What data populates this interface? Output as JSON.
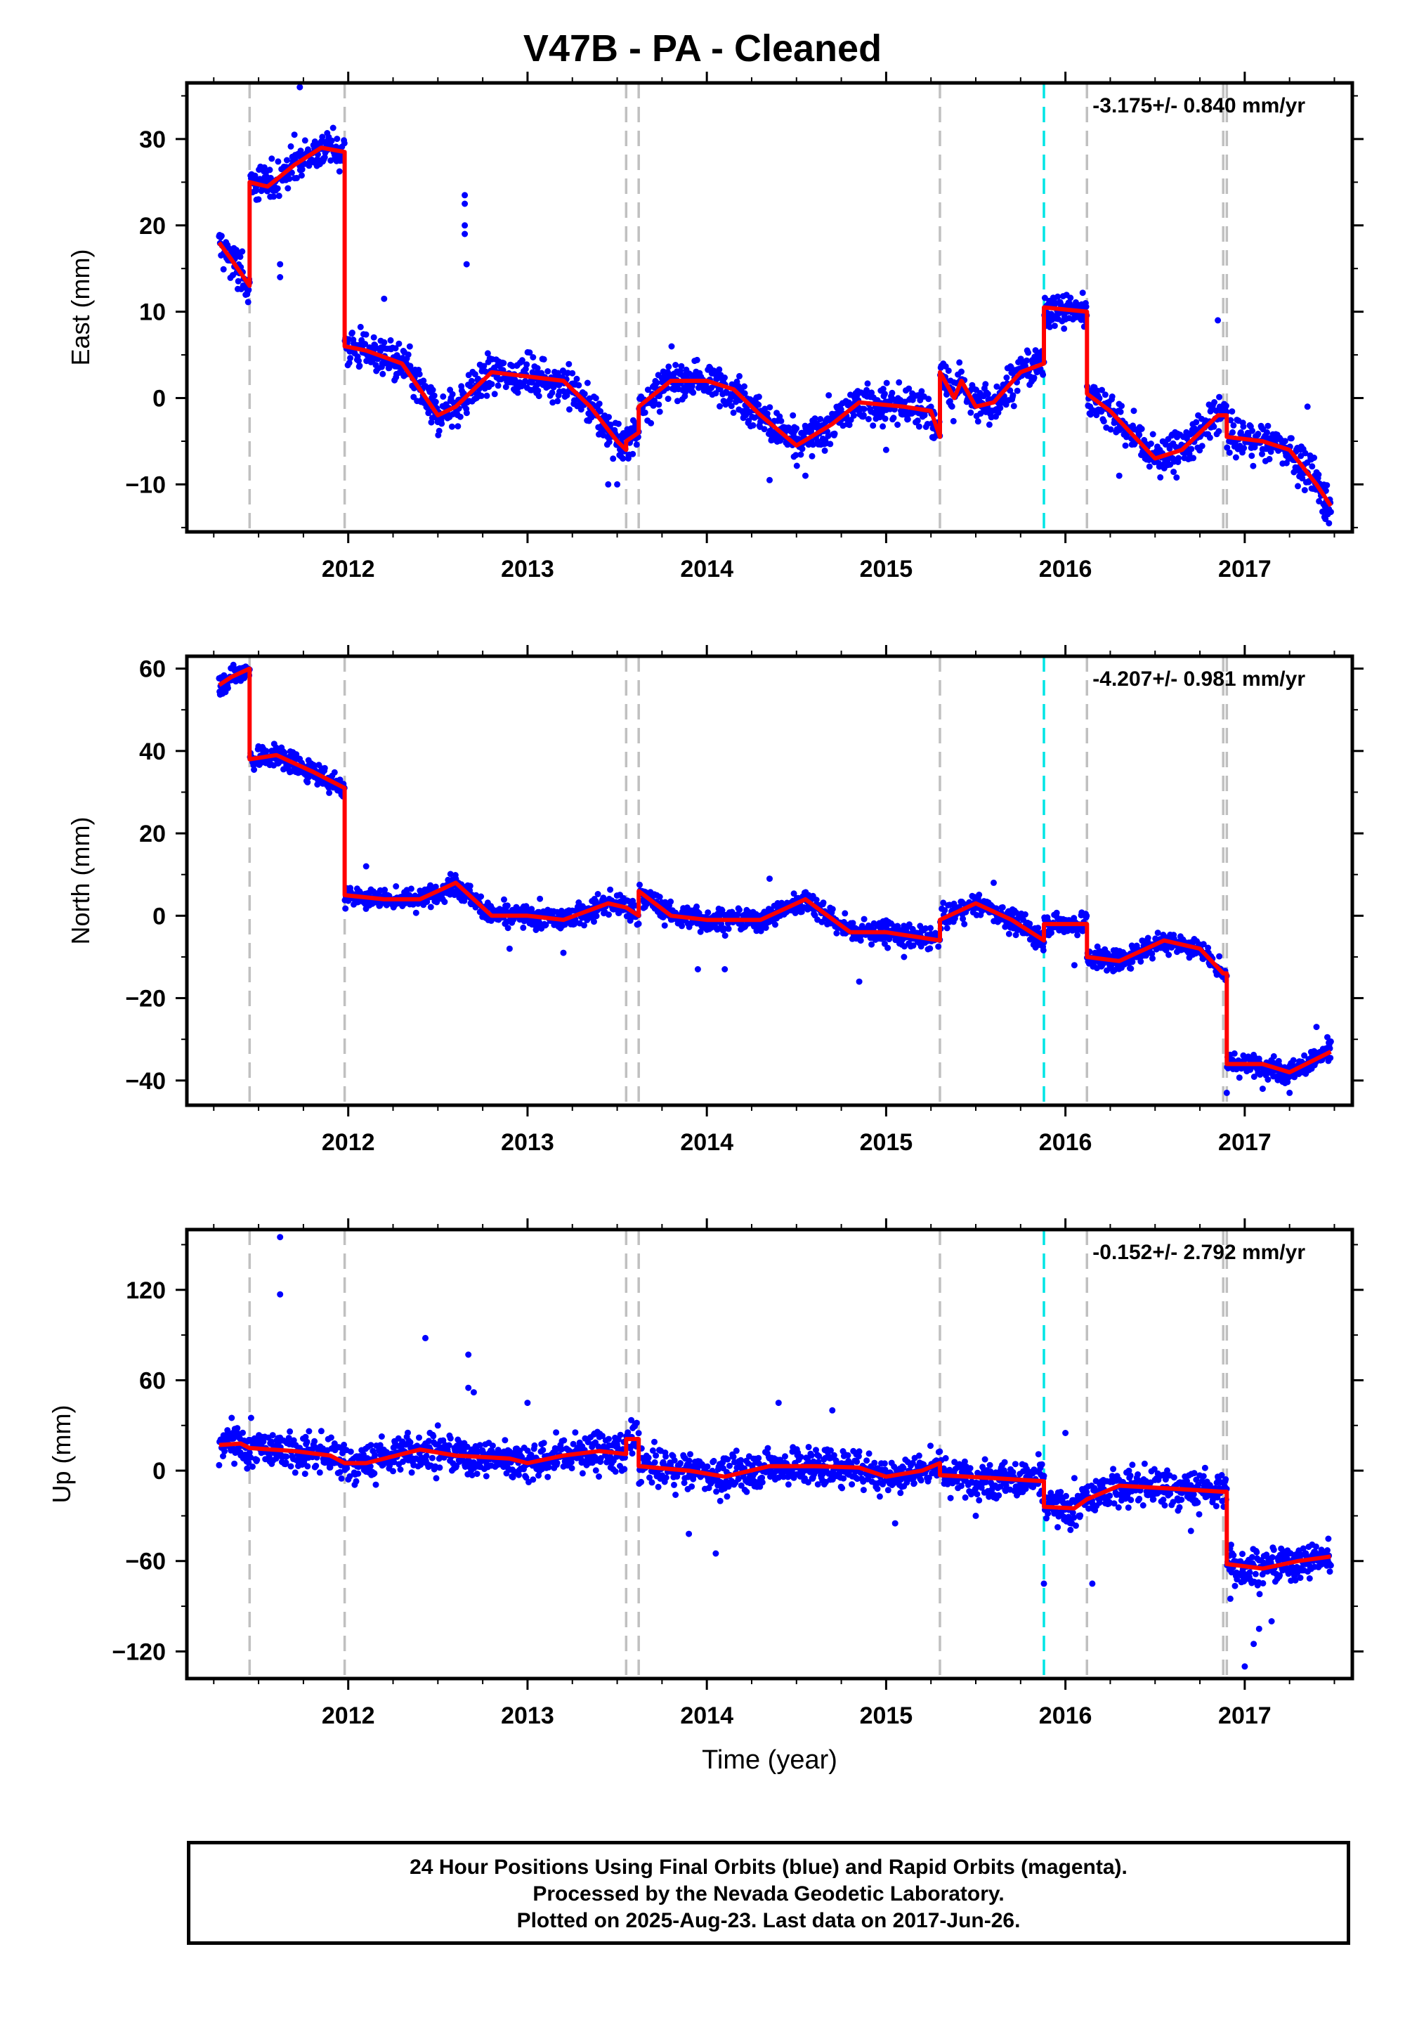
{
  "title": "V47B  - PA - Cleaned",
  "footer": {
    "line1": "24 Hour Positions Using Final Orbits (blue) and Rapid Orbits (magenta).",
    "line2": "Processed by the Nevada Geodetic Laboratory.",
    "line3": "Plotted on 2025-Aug-23. Last data on 2017-Jun-26."
  },
  "colors": {
    "data_points": "#0000ff",
    "model_line": "#ff0000",
    "event_line": "#c0c0c0",
    "antenna_line": "#00e5e5"
  },
  "chart_data": [
    {
      "type": "scatter",
      "name": "east",
      "ylabel": "East (mm)",
      "xlabel": "",
      "rate_text": "-3.175+/- 0.840 mm/yr",
      "xlim": [
        2011.1,
        2017.6
      ],
      "ylim": [
        -15.5,
        36.5
      ],
      "yticks": [
        -10,
        0,
        10,
        20,
        30
      ],
      "xticks": [
        2012,
        2013,
        2014,
        2015,
        2016,
        2017
      ],
      "vlines_gray": [
        2011.45,
        2011.98,
        2013.55,
        2013.62,
        2015.3,
        2016.12,
        2016.88,
        2016.9
      ],
      "vlines_cyan": [
        2015.88
      ],
      "model": [
        [
          2011.28,
          18
        ],
        [
          2011.35,
          16
        ],
        [
          2011.45,
          13
        ],
        [
          2011.45,
          25
        ],
        [
          2011.55,
          24.5
        ],
        [
          2011.7,
          27
        ],
        [
          2011.85,
          29
        ],
        [
          2011.98,
          28.5
        ],
        [
          2011.98,
          6
        ],
        [
          2012.1,
          5.5
        ],
        [
          2012.3,
          4
        ],
        [
          2012.5,
          -2
        ],
        [
          2012.6,
          -1
        ],
        [
          2012.8,
          3
        ],
        [
          2013.0,
          2.5
        ],
        [
          2013.2,
          2
        ],
        [
          2013.35,
          -1
        ],
        [
          2013.5,
          -5
        ],
        [
          2013.55,
          -6
        ],
        [
          2013.55,
          -5
        ],
        [
          2013.62,
          -4
        ],
        [
          2013.62,
          -1
        ],
        [
          2013.8,
          2
        ],
        [
          2014.0,
          2
        ],
        [
          2014.15,
          1
        ],
        [
          2014.3,
          -2
        ],
        [
          2014.5,
          -5.5
        ],
        [
          2014.7,
          -3
        ],
        [
          2014.85,
          -0.5
        ],
        [
          2015.1,
          -1
        ],
        [
          2015.25,
          -1.5
        ],
        [
          2015.3,
          -4.5
        ],
        [
          2015.3,
          3
        ],
        [
          2015.38,
          0
        ],
        [
          2015.42,
          2
        ],
        [
          2015.5,
          -1
        ],
        [
          2015.6,
          -0.5
        ],
        [
          2015.75,
          3
        ],
        [
          2015.88,
          4
        ],
        [
          2015.88,
          10.5
        ],
        [
          2016.12,
          10
        ],
        [
          2016.12,
          0.5
        ],
        [
          2016.25,
          -1.5
        ],
        [
          2016.5,
          -7
        ],
        [
          2016.65,
          -6
        ],
        [
          2016.85,
          -2
        ],
        [
          2016.9,
          -2
        ],
        [
          2016.9,
          -4.5
        ],
        [
          2017.1,
          -5
        ],
        [
          2017.25,
          -6
        ],
        [
          2017.4,
          -10
        ],
        [
          2017.48,
          -12.5
        ]
      ],
      "outliers": [
        [
          2011.7,
          30.5
        ],
        [
          2011.73,
          36
        ],
        [
          2011.62,
          15.5
        ],
        [
          2011.62,
          14
        ],
        [
          2012.65,
          23.5
        ],
        [
          2012.65,
          22.5
        ],
        [
          2012.65,
          20
        ],
        [
          2012.65,
          19
        ],
        [
          2012.66,
          15.5
        ],
        [
          2013.5,
          -10
        ],
        [
          2013.45,
          -10
        ],
        [
          2014.35,
          -9.5
        ],
        [
          2014.55,
          -9
        ],
        [
          2015.0,
          -6
        ],
        [
          2016.85,
          9
        ],
        [
          2017.35,
          -1
        ],
        [
          2017.45,
          -14
        ],
        [
          2017.47,
          -14.5
        ],
        [
          2016.3,
          -9
        ],
        [
          2012.2,
          11.5
        ]
      ]
    },
    {
      "type": "scatter",
      "name": "north",
      "ylabel": "North (mm)",
      "xlabel": "",
      "rate_text": "-4.207+/- 0.981 mm/yr",
      "xlim": [
        2011.1,
        2017.6
      ],
      "ylim": [
        -46,
        63
      ],
      "yticks": [
        -40,
        -20,
        0,
        20,
        40,
        60
      ],
      "xticks": [
        2012,
        2013,
        2014,
        2015,
        2016,
        2017
      ],
      "vlines_gray": [
        2011.45,
        2011.98,
        2013.55,
        2013.62,
        2015.3,
        2016.12,
        2016.88,
        2016.9
      ],
      "vlines_cyan": [
        2015.88
      ],
      "model": [
        [
          2011.28,
          56
        ],
        [
          2011.35,
          58
        ],
        [
          2011.45,
          60
        ],
        [
          2011.45,
          38
        ],
        [
          2011.6,
          39
        ],
        [
          2011.8,
          35
        ],
        [
          2011.98,
          31
        ],
        [
          2011.98,
          5
        ],
        [
          2012.2,
          4
        ],
        [
          2012.4,
          4
        ],
        [
          2012.6,
          8
        ],
        [
          2012.8,
          0
        ],
        [
          2013.0,
          0
        ],
        [
          2013.2,
          -1
        ],
        [
          2013.45,
          3
        ],
        [
          2013.55,
          2
        ],
        [
          2013.62,
          0
        ],
        [
          2013.62,
          6
        ],
        [
          2013.8,
          0
        ],
        [
          2014.0,
          -1
        ],
        [
          2014.3,
          -1
        ],
        [
          2014.55,
          4
        ],
        [
          2014.8,
          -4
        ],
        [
          2015.0,
          -4
        ],
        [
          2015.3,
          -6
        ],
        [
          2015.3,
          -1
        ],
        [
          2015.5,
          3
        ],
        [
          2015.7,
          -1
        ],
        [
          2015.88,
          -6
        ],
        [
          2015.88,
          -2
        ],
        [
          2016.12,
          -2
        ],
        [
          2016.12,
          -10
        ],
        [
          2016.3,
          -11
        ],
        [
          2016.55,
          -6
        ],
        [
          2016.75,
          -8
        ],
        [
          2016.88,
          -14
        ],
        [
          2016.9,
          -14
        ],
        [
          2016.9,
          -36
        ],
        [
          2017.1,
          -36
        ],
        [
          2017.25,
          -38
        ],
        [
          2017.48,
          -33
        ]
      ],
      "outliers": [
        [
          2013.95,
          -13
        ],
        [
          2014.1,
          -13
        ],
        [
          2014.85,
          -16
        ],
        [
          2015.1,
          -10
        ],
        [
          2016.9,
          -43
        ],
        [
          2017.1,
          -42
        ],
        [
          2017.25,
          -43
        ],
        [
          2017.4,
          -27
        ],
        [
          2013.2,
          -9
        ],
        [
          2012.9,
          -8
        ],
        [
          2015.6,
          8
        ],
        [
          2016.05,
          -12
        ],
        [
          2014.35,
          9
        ],
        [
          2012.1,
          12
        ]
      ]
    },
    {
      "type": "scatter",
      "name": "up",
      "ylabel": "Up (mm)",
      "xlabel": "Time (year)",
      "rate_text": "-0.152+/- 2.792 mm/yr",
      "xlim": [
        2011.1,
        2017.6
      ],
      "ylim": [
        -138,
        160
      ],
      "yticks": [
        -120,
        -60,
        0,
        60,
        120
      ],
      "xticks": [
        2012,
        2013,
        2014,
        2015,
        2016,
        2017
      ],
      "vlines_gray": [
        2011.45,
        2011.98,
        2013.55,
        2013.62,
        2015.3,
        2016.12,
        2016.88,
        2016.9
      ],
      "vlines_cyan": [
        2015.88
      ],
      "model": [
        [
          2011.28,
          17
        ],
        [
          2011.4,
          18
        ],
        [
          2011.45,
          15
        ],
        [
          2011.7,
          13
        ],
        [
          2011.9,
          10
        ],
        [
          2011.98,
          5
        ],
        [
          2012.1,
          5
        ],
        [
          2012.4,
          14
        ],
        [
          2012.6,
          10
        ],
        [
          2012.9,
          8
        ],
        [
          2013.0,
          5
        ],
        [
          2013.2,
          10
        ],
        [
          2013.4,
          13
        ],
        [
          2013.55,
          11
        ],
        [
          2013.55,
          21
        ],
        [
          2013.62,
          21
        ],
        [
          2013.62,
          3
        ],
        [
          2013.9,
          0
        ],
        [
          2014.1,
          -4
        ],
        [
          2014.35,
          3
        ],
        [
          2014.6,
          3
        ],
        [
          2014.85,
          2
        ],
        [
          2015.0,
          -4
        ],
        [
          2015.2,
          0
        ],
        [
          2015.3,
          5
        ],
        [
          2015.3,
          -3
        ],
        [
          2015.6,
          -5
        ],
        [
          2015.88,
          -7
        ],
        [
          2015.88,
          -24
        ],
        [
          2016.05,
          -25
        ],
        [
          2016.12,
          -19
        ],
        [
          2016.3,
          -10
        ],
        [
          2016.6,
          -12
        ],
        [
          2016.88,
          -14
        ],
        [
          2016.9,
          -14
        ],
        [
          2016.9,
          -62
        ],
        [
          2017.1,
          -65
        ],
        [
          2017.3,
          -60
        ],
        [
          2017.48,
          -57
        ]
      ],
      "outliers": [
        [
          2011.62,
          155
        ],
        [
          2011.62,
          117
        ],
        [
          2012.43,
          88
        ],
        [
          2012.67,
          77
        ],
        [
          2012.67,
          55
        ],
        [
          2012.7,
          52
        ],
        [
          2012.5,
          30
        ],
        [
          2013.0,
          45
        ],
        [
          2013.9,
          -42
        ],
        [
          2014.05,
          -55
        ],
        [
          2014.7,
          40
        ],
        [
          2015.05,
          -35
        ],
        [
          2015.88,
          -75
        ],
        [
          2016.0,
          25
        ],
        [
          2016.15,
          -75
        ],
        [
          2016.92,
          -85
        ],
        [
          2017.0,
          -130
        ],
        [
          2017.05,
          -115
        ],
        [
          2017.15,
          -100
        ],
        [
          2017.08,
          -105
        ],
        [
          2016.7,
          -40
        ],
        [
          2015.5,
          -30
        ],
        [
          2014.4,
          45
        ],
        [
          2011.35,
          35
        ]
      ]
    }
  ]
}
